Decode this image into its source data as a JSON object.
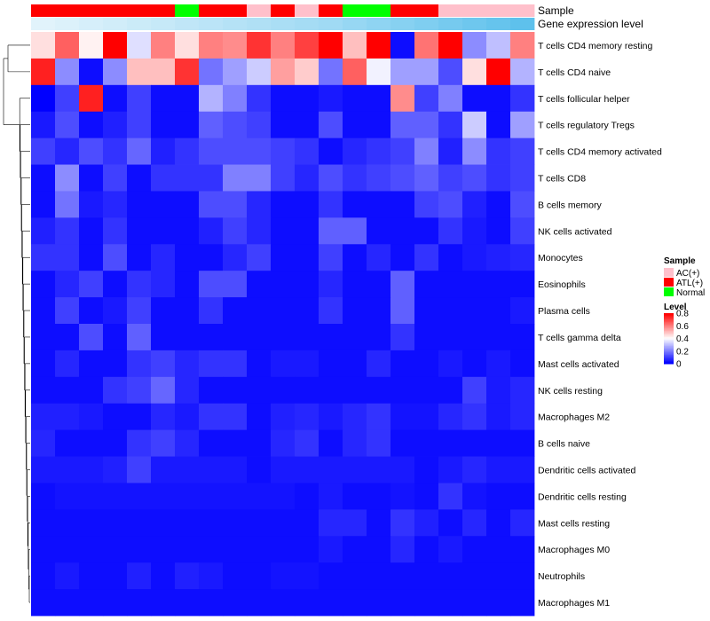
{
  "chart_data": {
    "type": "heatmap",
    "title": "",
    "annotation_tracks": [
      {
        "name": "Sample",
        "values": [
          "ATL(+)",
          "ATL(+)",
          "ATL(+)",
          "ATL(+)",
          "ATL(+)",
          "ATL(+)",
          "Normal",
          "ATL(+)",
          "ATL(+)",
          "AC(+)",
          "ATL(+)",
          "AC(+)",
          "ATL(+)",
          "Normal",
          "Normal",
          "ATL(+)",
          "ATL(+)",
          "AC(+)",
          "AC(+)",
          "AC(+)",
          "AC(+)"
        ]
      },
      {
        "name": "Gene expression level",
        "values": [
          0.02,
          0.06,
          0.1,
          0.14,
          0.18,
          0.22,
          0.26,
          0.3,
          0.34,
          0.38,
          0.42,
          0.46,
          0.5,
          0.56,
          0.62,
          0.68,
          0.74,
          0.8,
          0.86,
          0.92,
          0.98
        ]
      }
    ],
    "rows": [
      "T cells CD4 memory resting",
      "T cells CD4 naive",
      "T cells follicular helper",
      "T cells regulatory  Tregs",
      "T cells CD4 memory activated",
      "T cells CD8",
      "B cells memory",
      "NK cells activated",
      "Monocytes",
      "Eosinophils",
      "Plasma cells",
      "T cells gamma delta",
      "Mast cells activated",
      "NK cells resting",
      "Macrophages M2",
      "B cells naive",
      "Dendritic cells activated",
      "Dendritic cells resting",
      "Mast cells resting",
      "Macrophages M0",
      "Neutrophils",
      "Macrophages M1"
    ],
    "values": [
      [
        0.45,
        0.65,
        0.42,
        0.8,
        0.35,
        0.6,
        0.45,
        0.6,
        0.58,
        0.72,
        0.6,
        0.7,
        0.8,
        0.5,
        0.8,
        0.02,
        0.62,
        0.8,
        0.22,
        0.3,
        0.6
      ],
      [
        0.75,
        0.22,
        0.02,
        0.22,
        0.5,
        0.5,
        0.72,
        0.18,
        0.25,
        0.32,
        0.55,
        0.48,
        0.18,
        0.65,
        0.38,
        0.25,
        0.25,
        0.12,
        0.45,
        0.8,
        0.28
      ],
      [
        0.0,
        0.1,
        0.75,
        0.02,
        0.1,
        0.02,
        0.02,
        0.28,
        0.2,
        0.08,
        0.02,
        0.02,
        0.04,
        0.02,
        0.02,
        0.58,
        0.1,
        0.2,
        0.02,
        0.02,
        0.08
      ],
      [
        0.04,
        0.12,
        0.02,
        0.05,
        0.1,
        0.02,
        0.02,
        0.15,
        0.12,
        0.1,
        0.02,
        0.02,
        0.12,
        0.02,
        0.02,
        0.15,
        0.15,
        0.08,
        0.32,
        0.02,
        0.25
      ],
      [
        0.1,
        0.06,
        0.12,
        0.08,
        0.16,
        0.05,
        0.08,
        0.12,
        0.12,
        0.12,
        0.1,
        0.08,
        0.02,
        0.06,
        0.08,
        0.1,
        0.2,
        0.05,
        0.22,
        0.08,
        0.1
      ],
      [
        0.02,
        0.22,
        0.02,
        0.1,
        0.02,
        0.08,
        0.08,
        0.08,
        0.2,
        0.2,
        0.1,
        0.06,
        0.12,
        0.08,
        0.1,
        0.12,
        0.15,
        0.1,
        0.12,
        0.08,
        0.1
      ],
      [
        0.02,
        0.18,
        0.04,
        0.06,
        0.02,
        0.02,
        0.02,
        0.12,
        0.12,
        0.06,
        0.02,
        0.02,
        0.08,
        0.02,
        0.02,
        0.02,
        0.1,
        0.12,
        0.05,
        0.02,
        0.12
      ],
      [
        0.05,
        0.08,
        0.02,
        0.08,
        0.02,
        0.02,
        0.02,
        0.05,
        0.1,
        0.06,
        0.02,
        0.02,
        0.15,
        0.15,
        0.02,
        0.02,
        0.02,
        0.08,
        0.04,
        0.02,
        0.1
      ],
      [
        0.08,
        0.08,
        0.02,
        0.12,
        0.02,
        0.06,
        0.02,
        0.02,
        0.06,
        0.1,
        0.02,
        0.02,
        0.1,
        0.02,
        0.06,
        0.02,
        0.08,
        0.02,
        0.04,
        0.05,
        0.06
      ],
      [
        0.02,
        0.06,
        0.1,
        0.02,
        0.08,
        0.06,
        0.02,
        0.12,
        0.12,
        0.02,
        0.02,
        0.02,
        0.06,
        0.02,
        0.02,
        0.15,
        0.02,
        0.02,
        0.02,
        0.02,
        0.02
      ],
      [
        0.02,
        0.1,
        0.02,
        0.04,
        0.1,
        0.02,
        0.02,
        0.08,
        0.02,
        0.02,
        0.02,
        0.02,
        0.08,
        0.02,
        0.02,
        0.15,
        0.02,
        0.02,
        0.02,
        0.02,
        0.04
      ],
      [
        0.02,
        0.02,
        0.12,
        0.02,
        0.15,
        0.02,
        0.02,
        0.02,
        0.02,
        0.02,
        0.02,
        0.02,
        0.02,
        0.02,
        0.02,
        0.08,
        0.02,
        0.02,
        0.02,
        0.02,
        0.02
      ],
      [
        0.02,
        0.06,
        0.02,
        0.02,
        0.08,
        0.1,
        0.06,
        0.08,
        0.08,
        0.02,
        0.04,
        0.04,
        0.02,
        0.02,
        0.06,
        0.02,
        0.02,
        0.04,
        0.02,
        0.04,
        0.02
      ],
      [
        0.02,
        0.02,
        0.02,
        0.08,
        0.1,
        0.16,
        0.06,
        0.02,
        0.02,
        0.02,
        0.02,
        0.02,
        0.02,
        0.02,
        0.02,
        0.02,
        0.02,
        0.02,
        0.1,
        0.04,
        0.06
      ],
      [
        0.05,
        0.05,
        0.04,
        0.02,
        0.02,
        0.06,
        0.04,
        0.08,
        0.08,
        0.02,
        0.05,
        0.06,
        0.04,
        0.06,
        0.08,
        0.03,
        0.03,
        0.06,
        0.08,
        0.04,
        0.06
      ],
      [
        0.06,
        0.02,
        0.02,
        0.02,
        0.08,
        0.1,
        0.06,
        0.02,
        0.02,
        0.02,
        0.06,
        0.08,
        0.02,
        0.06,
        0.08,
        0.02,
        0.02,
        0.02,
        0.02,
        0.02,
        0.02
      ],
      [
        0.04,
        0.04,
        0.04,
        0.05,
        0.1,
        0.04,
        0.04,
        0.04,
        0.04,
        0.02,
        0.04,
        0.04,
        0.04,
        0.04,
        0.04,
        0.04,
        0.02,
        0.04,
        0.06,
        0.04,
        0.04
      ],
      [
        0.02,
        0.03,
        0.03,
        0.03,
        0.03,
        0.03,
        0.03,
        0.03,
        0.03,
        0.03,
        0.03,
        0.02,
        0.04,
        0.02,
        0.02,
        0.03,
        0.02,
        0.08,
        0.03,
        0.02,
        0.02
      ],
      [
        0.02,
        0.02,
        0.02,
        0.02,
        0.02,
        0.02,
        0.02,
        0.02,
        0.02,
        0.02,
        0.02,
        0.02,
        0.06,
        0.06,
        0.02,
        0.08,
        0.05,
        0.02,
        0.06,
        0.02,
        0.06
      ],
      [
        0.02,
        0.02,
        0.02,
        0.02,
        0.02,
        0.02,
        0.02,
        0.02,
        0.02,
        0.02,
        0.02,
        0.02,
        0.04,
        0.02,
        0.02,
        0.06,
        0.02,
        0.04,
        0.02,
        0.02,
        0.02
      ],
      [
        0.02,
        0.04,
        0.02,
        0.02,
        0.05,
        0.02,
        0.05,
        0.04,
        0.02,
        0.02,
        0.03,
        0.03,
        0.02,
        0.02,
        0.02,
        0.02,
        0.02,
        0.02,
        0.02,
        0.02,
        0.02
      ],
      [
        0.02,
        0.02,
        0.02,
        0.02,
        0.02,
        0.02,
        0.02,
        0.02,
        0.02,
        0.02,
        0.02,
        0.02,
        0.02,
        0.02,
        0.02,
        0.02,
        0.02,
        0.02,
        0.02,
        0.02,
        0.02
      ]
    ],
    "color_scale": {
      "low": "#0000ff",
      "mid": "#ffffff",
      "high": "#ff0000",
      "min": 0,
      "mid_value": 0.4,
      "max": 0.8
    },
    "legend": {
      "sample": {
        "title": "Sample",
        "entries": [
          {
            "label": "AC(+)",
            "color": "#ffc0cb"
          },
          {
            "label": "ATL(+)",
            "color": "#ff0000"
          },
          {
            "label": "Normal",
            "color": "#00ff00"
          }
        ]
      },
      "level": {
        "title": "Level",
        "ticks": [
          0.8,
          0.6,
          0.4,
          0.2,
          0
        ]
      }
    },
    "annotation_colors": {
      "Sample": {
        "AC(+)": "#ffc0cb",
        "ATL(+)": "#ff0000",
        "Normal": "#00ff00"
      },
      "Gene expression level": {
        "low": "#e4f4fb",
        "high": "#5bc0ec"
      }
    },
    "dendrogram": "row clustering tree (left side)"
  }
}
